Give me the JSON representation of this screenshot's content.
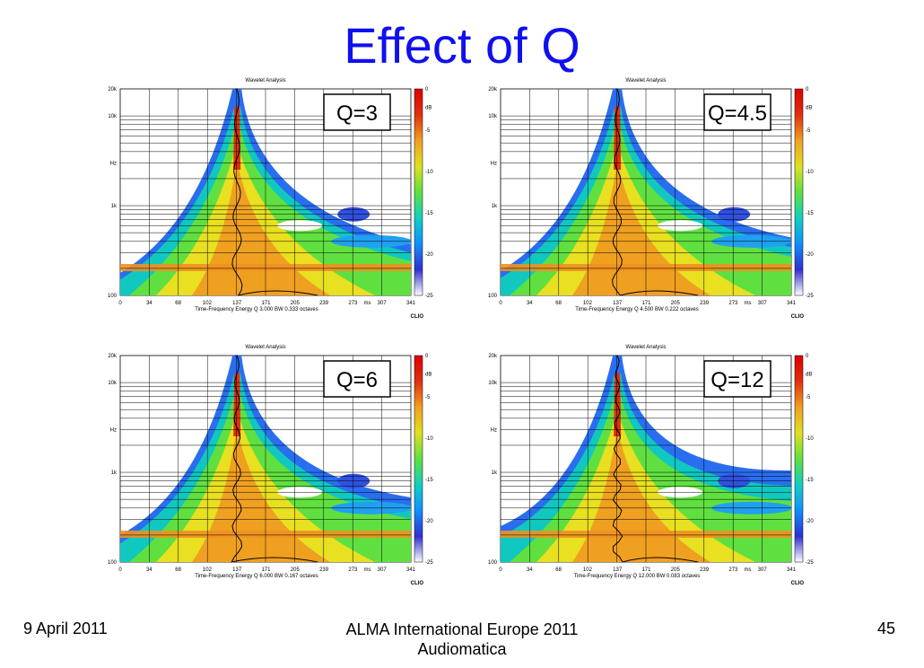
{
  "slide": {
    "title": "Effect of Q",
    "footer_left": "9 April 2011",
    "footer_center_line1": "ALMA International Europe 2011",
    "footer_center_line2": "Audiomatica",
    "page_number": "45"
  },
  "colors": {
    "title": "#1010ee",
    "colorbar": [
      "#ffffff",
      "#3030d0",
      "#1090ff",
      "#10d0c0",
      "#60e040",
      "#e0e020",
      "#f0a020",
      "#e03010",
      "#e00000"
    ]
  },
  "chart_data": [
    {
      "type": "heatmap",
      "plot_title": "Wavelet Analysis",
      "q_label": "Q=3",
      "q": 3,
      "caption": "Time-Frequency Energy  Q 3.000  BW 0.333 octaves",
      "brand": "CLIO",
      "x_ticks": [
        "0",
        "34",
        "68",
        "102",
        "137",
        "171",
        "205",
        "239",
        "273",
        "ms",
        "307",
        "341"
      ],
      "y_ticks": [
        "20k",
        "10k",
        "Hz",
        "1k",
        "100"
      ],
      "colorbar_ticks": [
        "0",
        "dB",
        "-5",
        "-10",
        "-15",
        "-20",
        "-25"
      ],
      "xlim": [
        0,
        341
      ],
      "ylim": [
        100,
        20000
      ],
      "y_scale": "log",
      "grid": true
    },
    {
      "type": "heatmap",
      "plot_title": "Wavelet Analysis",
      "q_label": "Q=4.5",
      "q": 4.5,
      "caption": "Time-Frequency Energy  Q 4.500  BW 0.222 octaves",
      "brand": "CLIO",
      "x_ticks": [
        "0",
        "34",
        "68",
        "102",
        "137",
        "171",
        "205",
        "239",
        "273",
        "ms",
        "307",
        "341"
      ],
      "y_ticks": [
        "20k",
        "10k",
        "Hz",
        "1k",
        "100"
      ],
      "colorbar_ticks": [
        "0",
        "dB",
        "-5",
        "-10",
        "-15",
        "-20",
        "-25"
      ],
      "xlim": [
        0,
        341
      ],
      "ylim": [
        100,
        20000
      ],
      "y_scale": "log",
      "grid": true
    },
    {
      "type": "heatmap",
      "plot_title": "Wavelet Analysis",
      "q_label": "Q=6",
      "q": 6,
      "caption": "Time-Frequency Energy  Q 6.000  BW 0.167 octaves",
      "brand": "CLIO",
      "x_ticks": [
        "0",
        "34",
        "68",
        "102",
        "137",
        "171",
        "205",
        "239",
        "273",
        "ms",
        "307",
        "341"
      ],
      "y_ticks": [
        "20k",
        "10k",
        "Hz",
        "1k",
        "100"
      ],
      "colorbar_ticks": [
        "0",
        "dB",
        "-5",
        "-10",
        "-15",
        "-20",
        "-25"
      ],
      "xlim": [
        0,
        341
      ],
      "ylim": [
        100,
        20000
      ],
      "y_scale": "log",
      "grid": true
    },
    {
      "type": "heatmap",
      "plot_title": "Wavelet Analysis",
      "q_label": "Q=12",
      "q": 12,
      "caption": "Time-Frequency Energy  Q 12.000  BW 0.083 octaves",
      "brand": "CLIO",
      "x_ticks": [
        "0",
        "34",
        "68",
        "102",
        "137",
        "171",
        "205",
        "239",
        "273",
        "ms",
        "307",
        "341"
      ],
      "y_ticks": [
        "20k",
        "10k",
        "Hz",
        "1k",
        "100"
      ],
      "colorbar_ticks": [
        "0",
        "dB",
        "-5",
        "-10",
        "-15",
        "-20",
        "-25"
      ],
      "xlim": [
        0,
        341
      ],
      "ylim": [
        100,
        20000
      ],
      "y_scale": "log",
      "grid": true
    }
  ]
}
